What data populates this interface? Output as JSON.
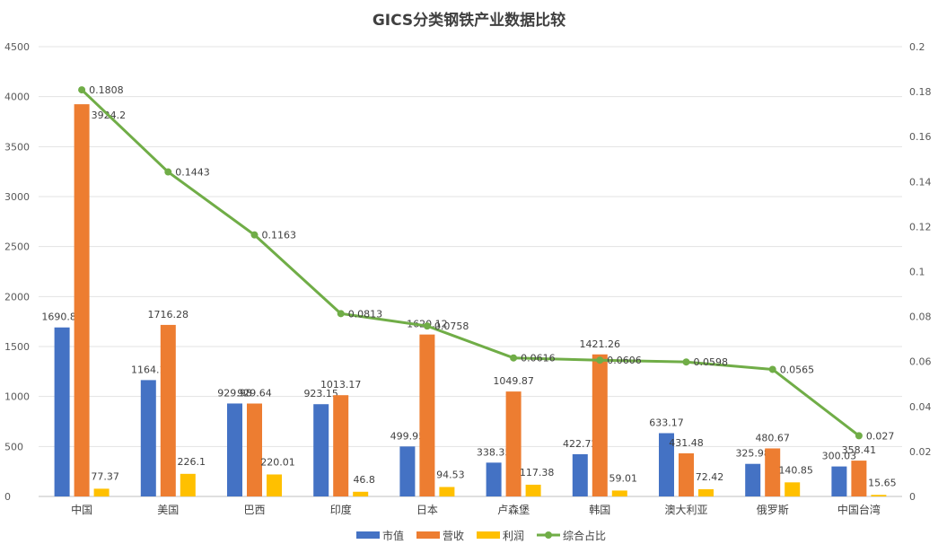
{
  "chart_data": {
    "type": "bar",
    "title": "GICS分类钢铁产业数据比较",
    "categories": [
      "中国",
      "美国",
      "巴西",
      "印度",
      "日本",
      "卢森堡",
      "韩国",
      "澳大利亚",
      "俄罗斯",
      "中国台湾"
    ],
    "series": [
      {
        "name": "市值",
        "type": "bar",
        "axis": "left",
        "color": "#4472C4",
        "values": [
          1690.88,
          1164.1,
          929.98,
          923.15,
          499.95,
          338.35,
          422.72,
          633.17,
          325.98,
          300.03
        ],
        "labels": [
          "1690.88",
          "1164.1",
          "929.98",
          "923.15",
          "499.95",
          "338.35",
          "422.72",
          "633.17",
          "325.98",
          "300.03"
        ]
      },
      {
        "name": "营收",
        "type": "bar",
        "axis": "left",
        "color": "#ED7D31",
        "values": [
          3924.2,
          1716.28,
          929.64,
          1013.17,
          1620.12,
          1049.87,
          1421.26,
          431.48,
          480.67,
          358.41
        ],
        "labels": [
          "3924.2",
          "1716.28",
          "929.64",
          "1013.17",
          "1620.12",
          "1049.87",
          "1421.26",
          "431.48",
          "480.67",
          "358.41"
        ]
      },
      {
        "name": "利润",
        "type": "bar",
        "axis": "left",
        "color": "#FFC000",
        "values": [
          77.37,
          226.1,
          220.01,
          46.8,
          94.53,
          117.38,
          59.01,
          72.42,
          140.85,
          15.65
        ],
        "labels": [
          "77.37",
          "226.1",
          "220.01",
          "46.8",
          "94.53",
          "117.38",
          "59.01",
          "72.42",
          "140.85",
          "15.65"
        ]
      },
      {
        "name": "综合占比",
        "type": "line",
        "axis": "right",
        "color": "#70AD47",
        "values": [
          0.1808,
          0.1443,
          0.1163,
          0.0813,
          0.0758,
          0.0616,
          0.0606,
          0.0598,
          0.0565,
          0.027
        ],
        "labels": [
          "0.1808",
          "0.1443",
          "0.1163",
          "0.0813",
          "0.0758",
          "0.0616",
          "0.0606",
          "0.0598",
          "0.0565",
          "0.027"
        ]
      }
    ],
    "y_left": {
      "min": 0,
      "max": 4500,
      "ticks": [
        "0",
        "500",
        "1000",
        "1500",
        "2000",
        "2500",
        "3000",
        "3500",
        "4000",
        "4500"
      ]
    },
    "y_right": {
      "min": 0,
      "max": 0.2,
      "ticks": [
        "0",
        "0.02",
        "0.04",
        "0.06",
        "0.08",
        "0.1",
        "0.12",
        "0.14",
        "0.16",
        "0.18",
        "0.2"
      ]
    },
    "grid": true,
    "legend": "bottom"
  }
}
